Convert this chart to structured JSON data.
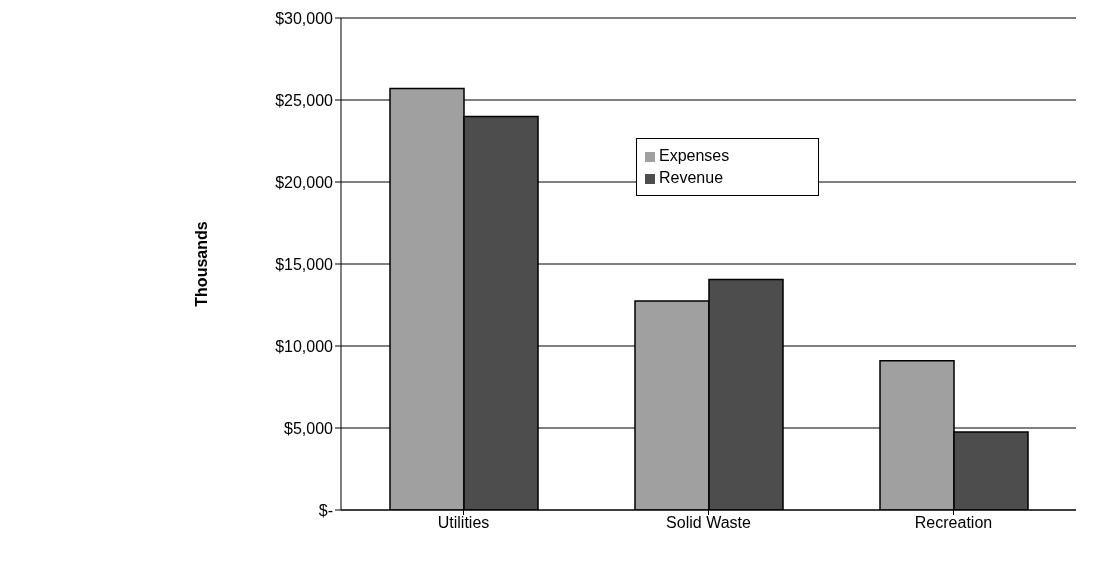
{
  "chart_data": {
    "type": "bar",
    "ylabel": "Thousands",
    "categories": [
      "Utilities",
      "Solid Waste",
      "Recreation"
    ],
    "series": [
      {
        "name": "Expenses",
        "color": "#a0a0a0",
        "values": [
          25700,
          12750,
          9100
        ]
      },
      {
        "name": "Revenue",
        "color": "#4d4d4d",
        "values": [
          24000,
          14050,
          4750
        ]
      }
    ],
    "ylim": [
      0,
      30000
    ],
    "yticks": [
      {
        "value": 0,
        "label": "$-"
      },
      {
        "value": 5000,
        "label": "$5,000"
      },
      {
        "value": 10000,
        "label": "$10,000"
      },
      {
        "value": 15000,
        "label": "$15,000"
      },
      {
        "value": 20000,
        "label": "$20,000"
      },
      {
        "value": 25000,
        "label": "$25,000"
      },
      {
        "value": 30000,
        "label": "$30,000"
      }
    ],
    "grid": "y",
    "legend": "top right"
  }
}
